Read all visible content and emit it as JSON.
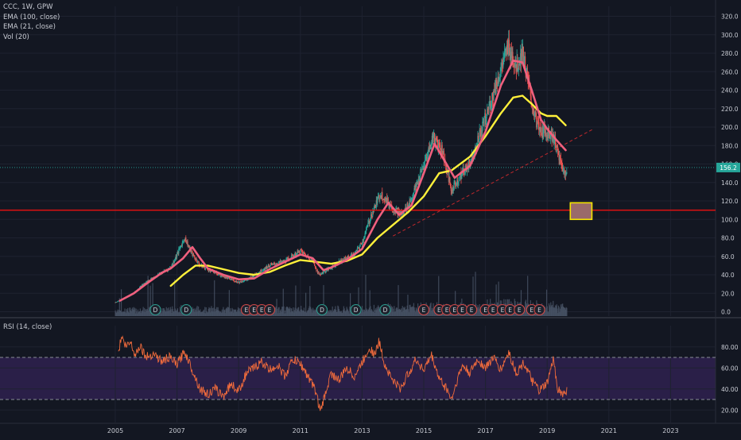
{
  "legend": {
    "symbol": "CCC, 1W, GPW",
    "ema100": "EMA (100, close)",
    "ema21": "EMA (21, close)",
    "vol": "Vol (20)"
  },
  "rsi_legend": "RSI (14, close)",
  "price_label": "156.2",
  "colors": {
    "background": "#131722",
    "grid": "#1e2230",
    "candle_up": "#26a69a",
    "candle_down": "#ef5350",
    "ema21": "#f0607e",
    "ema100": "#fff03a",
    "support_line": "#e01010",
    "trendline": "#c0282c",
    "rsi_line": "#ee6a3c",
    "rsi_band": "#2a1f48",
    "volume": "#4a5568",
    "last_price": "#26a69a",
    "target_box_fill": "#9a6a6a",
    "target_box_border": "#f5e500"
  },
  "chart_data": [
    {
      "type": "candlestick",
      "timeframe": "1W",
      "x_ticks": [
        "2005",
        "2007",
        "2009",
        "2011",
        "2013",
        "2015",
        "2017",
        "2019",
        "2021",
        "2023"
      ],
      "y_ticks": [
        "320.0",
        "300.0",
        "280.0",
        "260.0",
        "240.0",
        "220.0",
        "200.0",
        "180.0",
        "160.0",
        "140.0",
        "120.0",
        "100.0",
        "80.0",
        "60.0",
        "40.0",
        "20.0",
        "0.0"
      ],
      "ylim": [
        0,
        320
      ],
      "last_price": 156.2,
      "horizontal_level": 110,
      "price_series": [
        [
          2005.0,
          10
        ],
        [
          2005.5,
          18
        ],
        [
          2006.0,
          32
        ],
        [
          2006.5,
          42
        ],
        [
          2006.8,
          48
        ],
        [
          2007.0,
          62
        ],
        [
          2007.25,
          80
        ],
        [
          2007.5,
          62
        ],
        [
          2007.75,
          50
        ],
        [
          2008.0,
          46
        ],
        [
          2008.5,
          38
        ],
        [
          2009.0,
          32
        ],
        [
          2009.3,
          35
        ],
        [
          2009.75,
          45
        ],
        [
          2010.0,
          50
        ],
        [
          2010.5,
          55
        ],
        [
          2010.75,
          60
        ],
        [
          2011.0,
          66
        ],
        [
          2011.4,
          55
        ],
        [
          2011.6,
          40
        ],
        [
          2011.9,
          46
        ],
        [
          2012.3,
          55
        ],
        [
          2012.75,
          62
        ],
        [
          2013.0,
          75
        ],
        [
          2013.3,
          105
        ],
        [
          2013.6,
          128
        ],
        [
          2014.0,
          112
        ],
        [
          2014.3,
          105
        ],
        [
          2014.6,
          122
        ],
        [
          2015.0,
          158
        ],
        [
          2015.3,
          190
        ],
        [
          2015.6,
          175
        ],
        [
          2015.9,
          130
        ],
        [
          2016.0,
          138
        ],
        [
          2016.5,
          162
        ],
        [
          2017.0,
          210
        ],
        [
          2017.5,
          262
        ],
        [
          2017.75,
          288
        ],
        [
          2018.0,
          265
        ],
        [
          2018.2,
          282
        ],
        [
          2018.5,
          225
        ],
        [
          2018.75,
          195
        ],
        [
          2019.0,
          195
        ],
        [
          2019.2,
          190
        ],
        [
          2019.4,
          165
        ],
        [
          2019.55,
          150
        ],
        [
          2019.65,
          156
        ]
      ],
      "ema21": [
        [
          2005.15,
          12
        ],
        [
          2005.6,
          20
        ],
        [
          2006.0,
          30
        ],
        [
          2006.5,
          42
        ],
        [
          2006.8,
          47
        ],
        [
          2007.2,
          58
        ],
        [
          2007.5,
          70
        ],
        [
          2007.75,
          58
        ],
        [
          2008.0,
          47
        ],
        [
          2008.5,
          40
        ],
        [
          2009.0,
          35
        ],
        [
          2009.5,
          36
        ],
        [
          2010.0,
          46
        ],
        [
          2010.5,
          54
        ],
        [
          2011.0,
          62
        ],
        [
          2011.4,
          58
        ],
        [
          2011.75,
          45
        ],
        [
          2012.0,
          48
        ],
        [
          2012.5,
          56
        ],
        [
          2013.0,
          68
        ],
        [
          2013.5,
          100
        ],
        [
          2013.85,
          118
        ],
        [
          2014.2,
          105
        ],
        [
          2014.6,
          115
        ],
        [
          2015.0,
          150
        ],
        [
          2015.35,
          182
        ],
        [
          2015.7,
          162
        ],
        [
          2016.0,
          145
        ],
        [
          2016.5,
          158
        ],
        [
          2017.0,
          195
        ],
        [
          2017.5,
          245
        ],
        [
          2017.9,
          272
        ],
        [
          2018.2,
          270
        ],
        [
          2018.5,
          240
        ],
        [
          2018.8,
          208
        ],
        [
          2019.0,
          198
        ],
        [
          2019.3,
          186
        ],
        [
          2019.6,
          175
        ]
      ],
      "ema100": [
        [
          2006.8,
          28
        ],
        [
          2007.2,
          40
        ],
        [
          2007.6,
          50
        ],
        [
          2008.0,
          50
        ],
        [
          2008.5,
          46
        ],
        [
          2009.0,
          42
        ],
        [
          2009.5,
          40
        ],
        [
          2010.0,
          43
        ],
        [
          2010.5,
          50
        ],
        [
          2011.0,
          56
        ],
        [
          2011.5,
          54
        ],
        [
          2012.0,
          52
        ],
        [
          2012.5,
          55
        ],
        [
          2013.0,
          62
        ],
        [
          2013.5,
          80
        ],
        [
          2014.0,
          94
        ],
        [
          2014.5,
          108
        ],
        [
          2015.0,
          125
        ],
        [
          2015.5,
          150
        ],
        [
          2015.9,
          153
        ],
        [
          2016.5,
          168
        ],
        [
          2017.0,
          190
        ],
        [
          2017.5,
          215
        ],
        [
          2017.9,
          232
        ],
        [
          2018.2,
          234
        ],
        [
          2018.5,
          225
        ],
        [
          2018.8,
          215
        ],
        [
          2019.0,
          212
        ],
        [
          2019.3,
          212
        ],
        [
          2019.6,
          202
        ]
      ],
      "trendline": [
        [
          2014.0,
          82
        ],
        [
          2020.5,
          198
        ]
      ],
      "target_zone": {
        "x": [
          2019.75,
          2020.45
        ],
        "y": [
          100,
          118
        ]
      },
      "event_markers": [
        {
          "x": 2006.3,
          "label": "D"
        },
        {
          "x": 2007.3,
          "label": "D"
        },
        {
          "x": 2009.25,
          "label": "E"
        },
        {
          "x": 2009.5,
          "label": "E"
        },
        {
          "x": 2009.75,
          "label": "E"
        },
        {
          "x": 2010.0,
          "label": "E"
        },
        {
          "x": 2011.7,
          "label": "D"
        },
        {
          "x": 2012.8,
          "label": "D"
        },
        {
          "x": 2013.75,
          "label": "D"
        },
        {
          "x": 2015.0,
          "label": "E"
        },
        {
          "x": 2015.5,
          "label": "E"
        },
        {
          "x": 2015.75,
          "label": "E"
        },
        {
          "x": 2016.0,
          "label": "E"
        },
        {
          "x": 2016.25,
          "label": "E"
        },
        {
          "x": 2016.55,
          "label": "E"
        },
        {
          "x": 2017.0,
          "label": "E"
        },
        {
          "x": 2017.25,
          "label": "E"
        },
        {
          "x": 2017.55,
          "label": "E"
        },
        {
          "x": 2017.8,
          "label": "E"
        },
        {
          "x": 2018.1,
          "label": "E"
        },
        {
          "x": 2018.5,
          "label": "E"
        },
        {
          "x": 2018.75,
          "label": "E"
        }
      ]
    },
    {
      "type": "line",
      "indicator": "RSI (14, close)",
      "y_ticks": [
        "80.00",
        "60.00",
        "40.00",
        "20.00"
      ],
      "ylim": [
        12,
        95
      ],
      "upper_band": 70,
      "lower_band": 30,
      "values": [
        [
          2005.1,
          75
        ],
        [
          2005.2,
          90
        ],
        [
          2005.35,
          80
        ],
        [
          2005.5,
          85
        ],
        [
          2005.65,
          72
        ],
        [
          2005.8,
          82
        ],
        [
          2006.0,
          70
        ],
        [
          2006.25,
          74
        ],
        [
          2006.5,
          66
        ],
        [
          2006.75,
          70
        ],
        [
          2007.0,
          63
        ],
        [
          2007.25,
          76
        ],
        [
          2007.5,
          58
        ],
        [
          2007.75,
          40
        ],
        [
          2008.0,
          35
        ],
        [
          2008.25,
          40
        ],
        [
          2008.5,
          33
        ],
        [
          2008.75,
          45
        ],
        [
          2009.0,
          38
        ],
        [
          2009.25,
          55
        ],
        [
          2009.5,
          60
        ],
        [
          2009.75,
          66
        ],
        [
          2010.0,
          58
        ],
        [
          2010.25,
          63
        ],
        [
          2010.5,
          52
        ],
        [
          2010.75,
          68
        ],
        [
          2011.0,
          64
        ],
        [
          2011.25,
          52
        ],
        [
          2011.5,
          38
        ],
        [
          2011.65,
          18
        ],
        [
          2011.85,
          40
        ],
        [
          2012.0,
          55
        ],
        [
          2012.25,
          48
        ],
        [
          2012.5,
          60
        ],
        [
          2012.75,
          52
        ],
        [
          2013.0,
          65
        ],
        [
          2013.25,
          80
        ],
        [
          2013.4,
          72
        ],
        [
          2013.55,
          85
        ],
        [
          2013.75,
          62
        ],
        [
          2014.0,
          48
        ],
        [
          2014.25,
          40
        ],
        [
          2014.5,
          55
        ],
        [
          2014.75,
          68
        ],
        [
          2015.0,
          58
        ],
        [
          2015.25,
          72
        ],
        [
          2015.5,
          50
        ],
        [
          2015.75,
          40
        ],
        [
          2015.9,
          30
        ],
        [
          2016.1,
          50
        ],
        [
          2016.25,
          62
        ],
        [
          2016.5,
          55
        ],
        [
          2016.75,
          68
        ],
        [
          2017.0,
          60
        ],
        [
          2017.25,
          70
        ],
        [
          2017.5,
          58
        ],
        [
          2017.75,
          75
        ],
        [
          2018.0,
          55
        ],
        [
          2018.25,
          65
        ],
        [
          2018.5,
          48
        ],
        [
          2018.75,
          38
        ],
        [
          2019.0,
          45
        ],
        [
          2019.2,
          68
        ],
        [
          2019.35,
          40
        ],
        [
          2019.5,
          35
        ],
        [
          2019.65,
          38
        ]
      ]
    }
  ]
}
